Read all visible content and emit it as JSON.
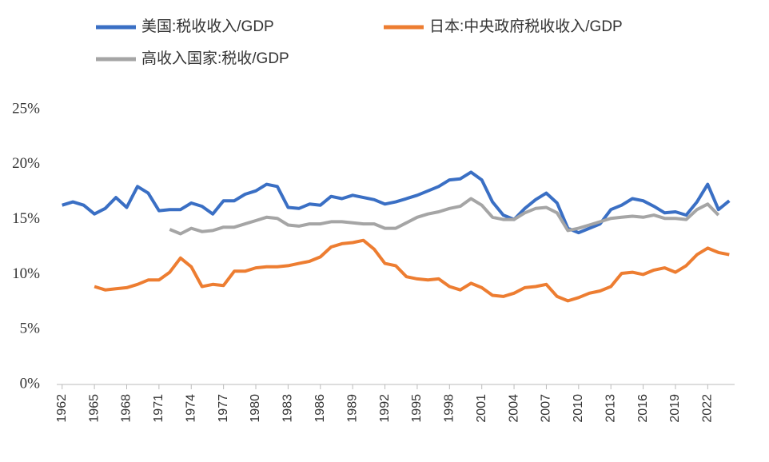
{
  "chart_data": {
    "type": "line",
    "x": [
      1962,
      1963,
      1964,
      1965,
      1966,
      1967,
      1968,
      1969,
      1970,
      1971,
      1972,
      1973,
      1974,
      1975,
      1976,
      1977,
      1978,
      1979,
      1980,
      1981,
      1982,
      1983,
      1984,
      1985,
      1986,
      1987,
      1988,
      1989,
      1990,
      1991,
      1992,
      1993,
      1994,
      1995,
      1996,
      1997,
      1998,
      1999,
      2000,
      2001,
      2002,
      2003,
      2004,
      2005,
      2006,
      2007,
      2008,
      2009,
      2010,
      2011,
      2012,
      2013,
      2014,
      2015,
      2016,
      2017,
      2018,
      2019,
      2020,
      2021,
      2022,
      2023,
      2024
    ],
    "series": [
      {
        "name": "美国:税收收入/GDP",
        "color": "#3a6fc4",
        "values": [
          16.3,
          16.6,
          16.3,
          15.5,
          16.0,
          17.0,
          16.1,
          18.0,
          17.4,
          15.8,
          15.9,
          15.9,
          16.5,
          16.2,
          15.5,
          16.7,
          16.7,
          17.3,
          17.6,
          18.2,
          18.0,
          16.1,
          16.0,
          16.4,
          16.3,
          17.1,
          16.9,
          17.2,
          17.0,
          16.8,
          16.4,
          16.6,
          16.9,
          17.2,
          17.6,
          18.0,
          18.6,
          18.7,
          19.3,
          18.6,
          16.6,
          15.4,
          15.0,
          16.0,
          16.8,
          17.4,
          16.5,
          14.2,
          13.8,
          14.2,
          14.6,
          15.9,
          16.3,
          16.9,
          16.7,
          16.2,
          15.6,
          15.7,
          15.4,
          16.6,
          18.2,
          15.9,
          16.7
        ]
      },
      {
        "name": "日本:中央政府税收收入/GDP",
        "color": "#ed7d31",
        "values": [
          null,
          null,
          null,
          8.9,
          8.6,
          8.7,
          8.8,
          9.1,
          9.5,
          9.5,
          10.2,
          11.5,
          10.7,
          8.9,
          9.1,
          9.0,
          10.3,
          10.3,
          10.6,
          10.7,
          10.7,
          10.8,
          11.0,
          11.2,
          11.6,
          12.5,
          12.8,
          12.9,
          13.1,
          12.3,
          11.0,
          10.8,
          9.8,
          9.6,
          9.5,
          9.6,
          8.9,
          8.6,
          9.2,
          8.8,
          8.1,
          8.0,
          8.3,
          8.8,
          8.9,
          9.1,
          8.0,
          7.6,
          7.9,
          8.3,
          8.5,
          8.9,
          10.1,
          10.2,
          10.0,
          10.4,
          10.6,
          10.2,
          10.8,
          11.8,
          12.4,
          12.0,
          11.8
        ]
      },
      {
        "name": "高收入国家:税收/GDP",
        "color": "#a5a5a5",
        "values": [
          null,
          null,
          null,
          null,
          null,
          null,
          null,
          null,
          null,
          null,
          14.1,
          13.7,
          14.2,
          13.9,
          14.0,
          14.3,
          14.3,
          14.6,
          14.9,
          15.2,
          15.1,
          14.5,
          14.4,
          14.6,
          14.6,
          14.8,
          14.8,
          14.7,
          14.6,
          14.6,
          14.2,
          14.2,
          14.7,
          15.2,
          15.5,
          15.7,
          16.0,
          16.2,
          16.9,
          16.3,
          15.2,
          15.0,
          15.0,
          15.6,
          16.0,
          16.1,
          15.6,
          14.0,
          14.2,
          14.5,
          14.8,
          15.1,
          15.2,
          15.3,
          15.2,
          15.4,
          15.1,
          15.1,
          15.0,
          15.9,
          16.4,
          15.4,
          null
        ]
      }
    ],
    "xlim": [
      1961.5,
      2024.5
    ],
    "xticks": [
      1962,
      1965,
      1968,
      1971,
      1974,
      1977,
      1980,
      1983,
      1986,
      1989,
      1992,
      1995,
      1998,
      2001,
      2004,
      2007,
      2010,
      2013,
      2016,
      2019,
      2022
    ],
    "ylim": [
      0,
      25
    ],
    "yticks": [
      {
        "value": 0,
        "label": "0%"
      },
      {
        "value": 5,
        "label": "5%"
      },
      {
        "value": 10,
        "label": "10%"
      },
      {
        "value": 15,
        "label": "15%"
      },
      {
        "value": 20,
        "label": "20%"
      },
      {
        "value": 25,
        "label": "25%"
      }
    ],
    "grid": false
  }
}
